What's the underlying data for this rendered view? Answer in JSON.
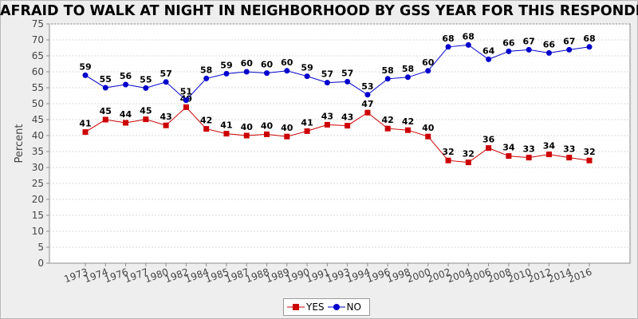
{
  "chart_data": {
    "type": "line",
    "title": "AFRAID TO WALK AT NIGHT IN NEIGHBORHOOD BY GSS YEAR FOR THIS RESPONDENT",
    "xlabel": "",
    "ylabel": "Percent",
    "ylim": [
      0,
      75
    ],
    "yticks": [
      0,
      5,
      10,
      15,
      20,
      25,
      30,
      35,
      40,
      45,
      50,
      55,
      60,
      65,
      70,
      75
    ],
    "grid": true,
    "legend_position": "bottom",
    "categories": [
      "1973",
      "1974",
      "1976",
      "1977",
      "1980",
      "1982",
      "1984",
      "1985",
      "1987",
      "1988",
      "1989",
      "1990",
      "1991",
      "1993",
      "1994",
      "1996",
      "1998",
      "2000",
      "2002",
      "2004",
      "2006",
      "2008",
      "2010",
      "2012",
      "2014",
      "2016"
    ],
    "series": [
      {
        "name": "YES",
        "color": "#cc0000",
        "marker": "square",
        "values": [
          41.1,
          45.0,
          44.0,
          45.1,
          43.2,
          48.9,
          42.1,
          40.6,
          40.0,
          40.4,
          39.7,
          41.4,
          43.4,
          43.1,
          47.2,
          42.2,
          41.7,
          39.7,
          32.2,
          31.6,
          36.1,
          33.6,
          33.1,
          34.1,
          33.1,
          32.2
        ],
        "labels": [
          "41",
          "45",
          "44",
          "45",
          "43",
          "49",
          "42",
          "41",
          "40",
          "40",
          "40",
          "41",
          "43",
          "43",
          "47",
          "42",
          "42",
          "40",
          "32",
          "32",
          "36",
          "34",
          "33",
          "34",
          "33",
          "32"
        ]
      },
      {
        "name": "NO",
        "color": "#0000cc",
        "marker": "circle",
        "values": [
          58.9,
          55.0,
          56.0,
          54.9,
          56.8,
          51.1,
          57.9,
          59.4,
          60.0,
          59.6,
          60.3,
          58.6,
          56.6,
          56.9,
          52.8,
          57.8,
          58.3,
          60.3,
          67.8,
          68.4,
          63.9,
          66.4,
          66.9,
          65.9,
          66.9,
          67.8
        ],
        "labels": [
          "59",
          "55",
          "56",
          "55",
          "57",
          "51",
          "58",
          "59",
          "60",
          "60",
          "60",
          "59",
          "57",
          "57",
          "53",
          "58",
          "58",
          "60",
          "68",
          "68",
          "64",
          "66",
          "67",
          "66",
          "67",
          "68"
        ]
      }
    ]
  },
  "legend": {
    "yes_label": "YES",
    "no_label": "NO"
  }
}
